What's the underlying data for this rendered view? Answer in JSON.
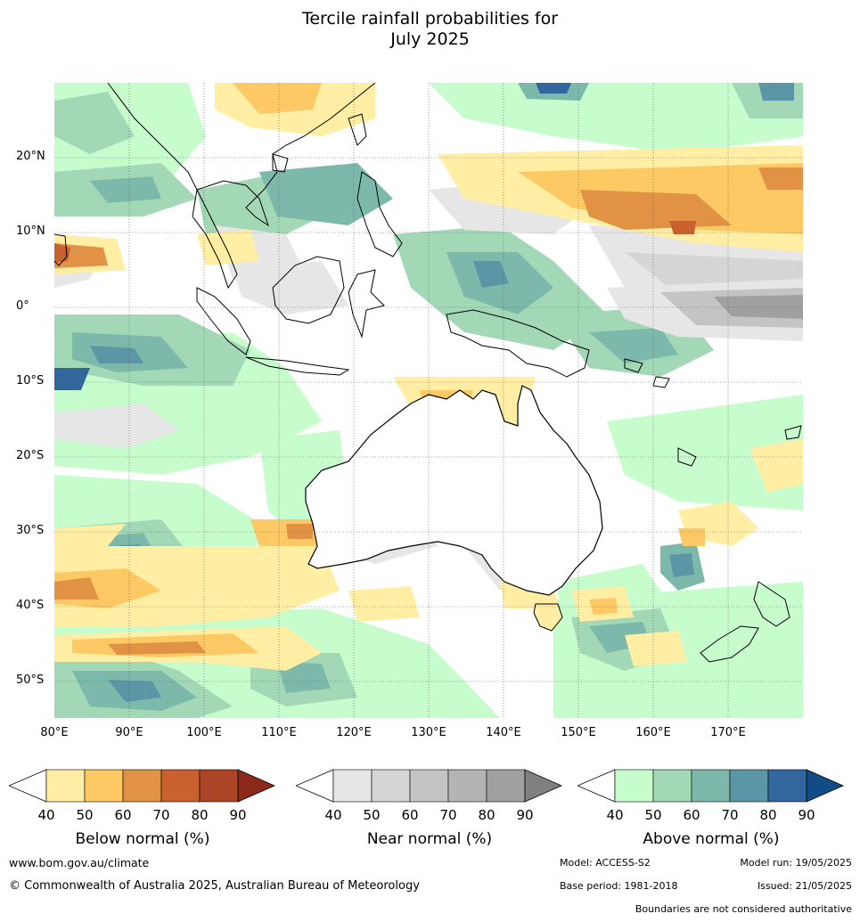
{
  "title": {
    "line1": "Tercile rainfall probabilities for",
    "line2": "July 2025"
  },
  "map": {
    "lon_range": [
      80,
      180
    ],
    "lat_range": [
      -55,
      30
    ],
    "lat_labels": [
      "20°N",
      "10°N",
      "0°",
      "10°S",
      "20°S",
      "30°S",
      "40°S",
      "50°S"
    ],
    "lon_labels": [
      "80°E",
      "90°E",
      "100°E",
      "110°E",
      "120°E",
      "130°E",
      "140°E",
      "150°E",
      "160°E",
      "170°E"
    ],
    "grid": true
  },
  "legends": [
    {
      "title": "Below normal (%)",
      "ticks": [
        "40",
        "50",
        "60",
        "70",
        "80",
        "90"
      ],
      "colors": [
        "#ffeea3",
        "#fdc965",
        "#e19245",
        "#c9612f",
        "#ac4525",
        "#8b2a1b"
      ]
    },
    {
      "title": "Near normal (%)",
      "ticks": [
        "40",
        "50",
        "60",
        "70",
        "80",
        "90"
      ],
      "colors": [
        "#e6e6e6",
        "#d5d5d5",
        "#c4c4c4",
        "#b4b4b4",
        "#a0a0a0",
        "#808080"
      ]
    },
    {
      "title": "Above normal (%)",
      "ticks": [
        "40",
        "50",
        "60",
        "70",
        "80",
        "90"
      ],
      "colors": [
        "#c7fccd",
        "#a3d8b6",
        "#7db9ab",
        "#5a96a5",
        "#31679c",
        "#124c87"
      ]
    }
  ],
  "footer": {
    "website": "www.bom.gov.au/climate",
    "copyright": "© Commonwealth of Australia 2025, Australian Bureau of Meteorology",
    "model": "Model: ACCESS-S2",
    "model_run": "Model run: 19/05/2025",
    "base_period": "Base period: 1981-2018",
    "issued": "Issued: 21/05/2025",
    "disclaimer": "Boundaries are not considered authoritative"
  }
}
